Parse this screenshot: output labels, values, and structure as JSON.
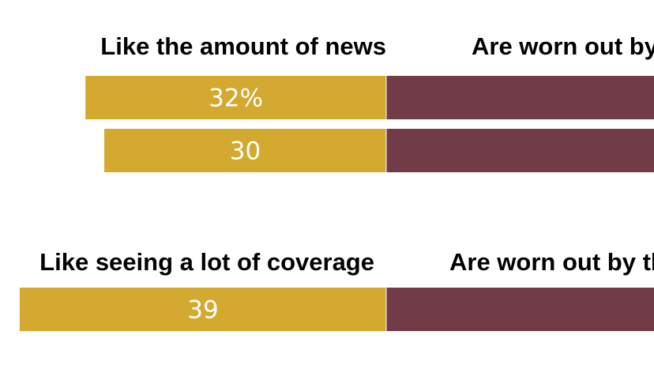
{
  "chart_data": {
    "type": "bar",
    "orientation": "horizontal-diverging",
    "colors": {
      "left": "#D3A92F",
      "right": "#713C48"
    },
    "groups": [
      {
        "left_header": "Like the amount of news",
        "right_header": "Are worn out by the amount of news",
        "bars": [
          {
            "left_value": 32,
            "left_label": "32%"
          },
          {
            "left_value": 30,
            "left_label": "30"
          }
        ]
      },
      {
        "left_header": "Like seeing a lot of coverage",
        "right_header": "Are worn out by the amount of coverage",
        "bars": [
          {
            "left_value": 39,
            "left_label": "39"
          }
        ]
      }
    ]
  }
}
